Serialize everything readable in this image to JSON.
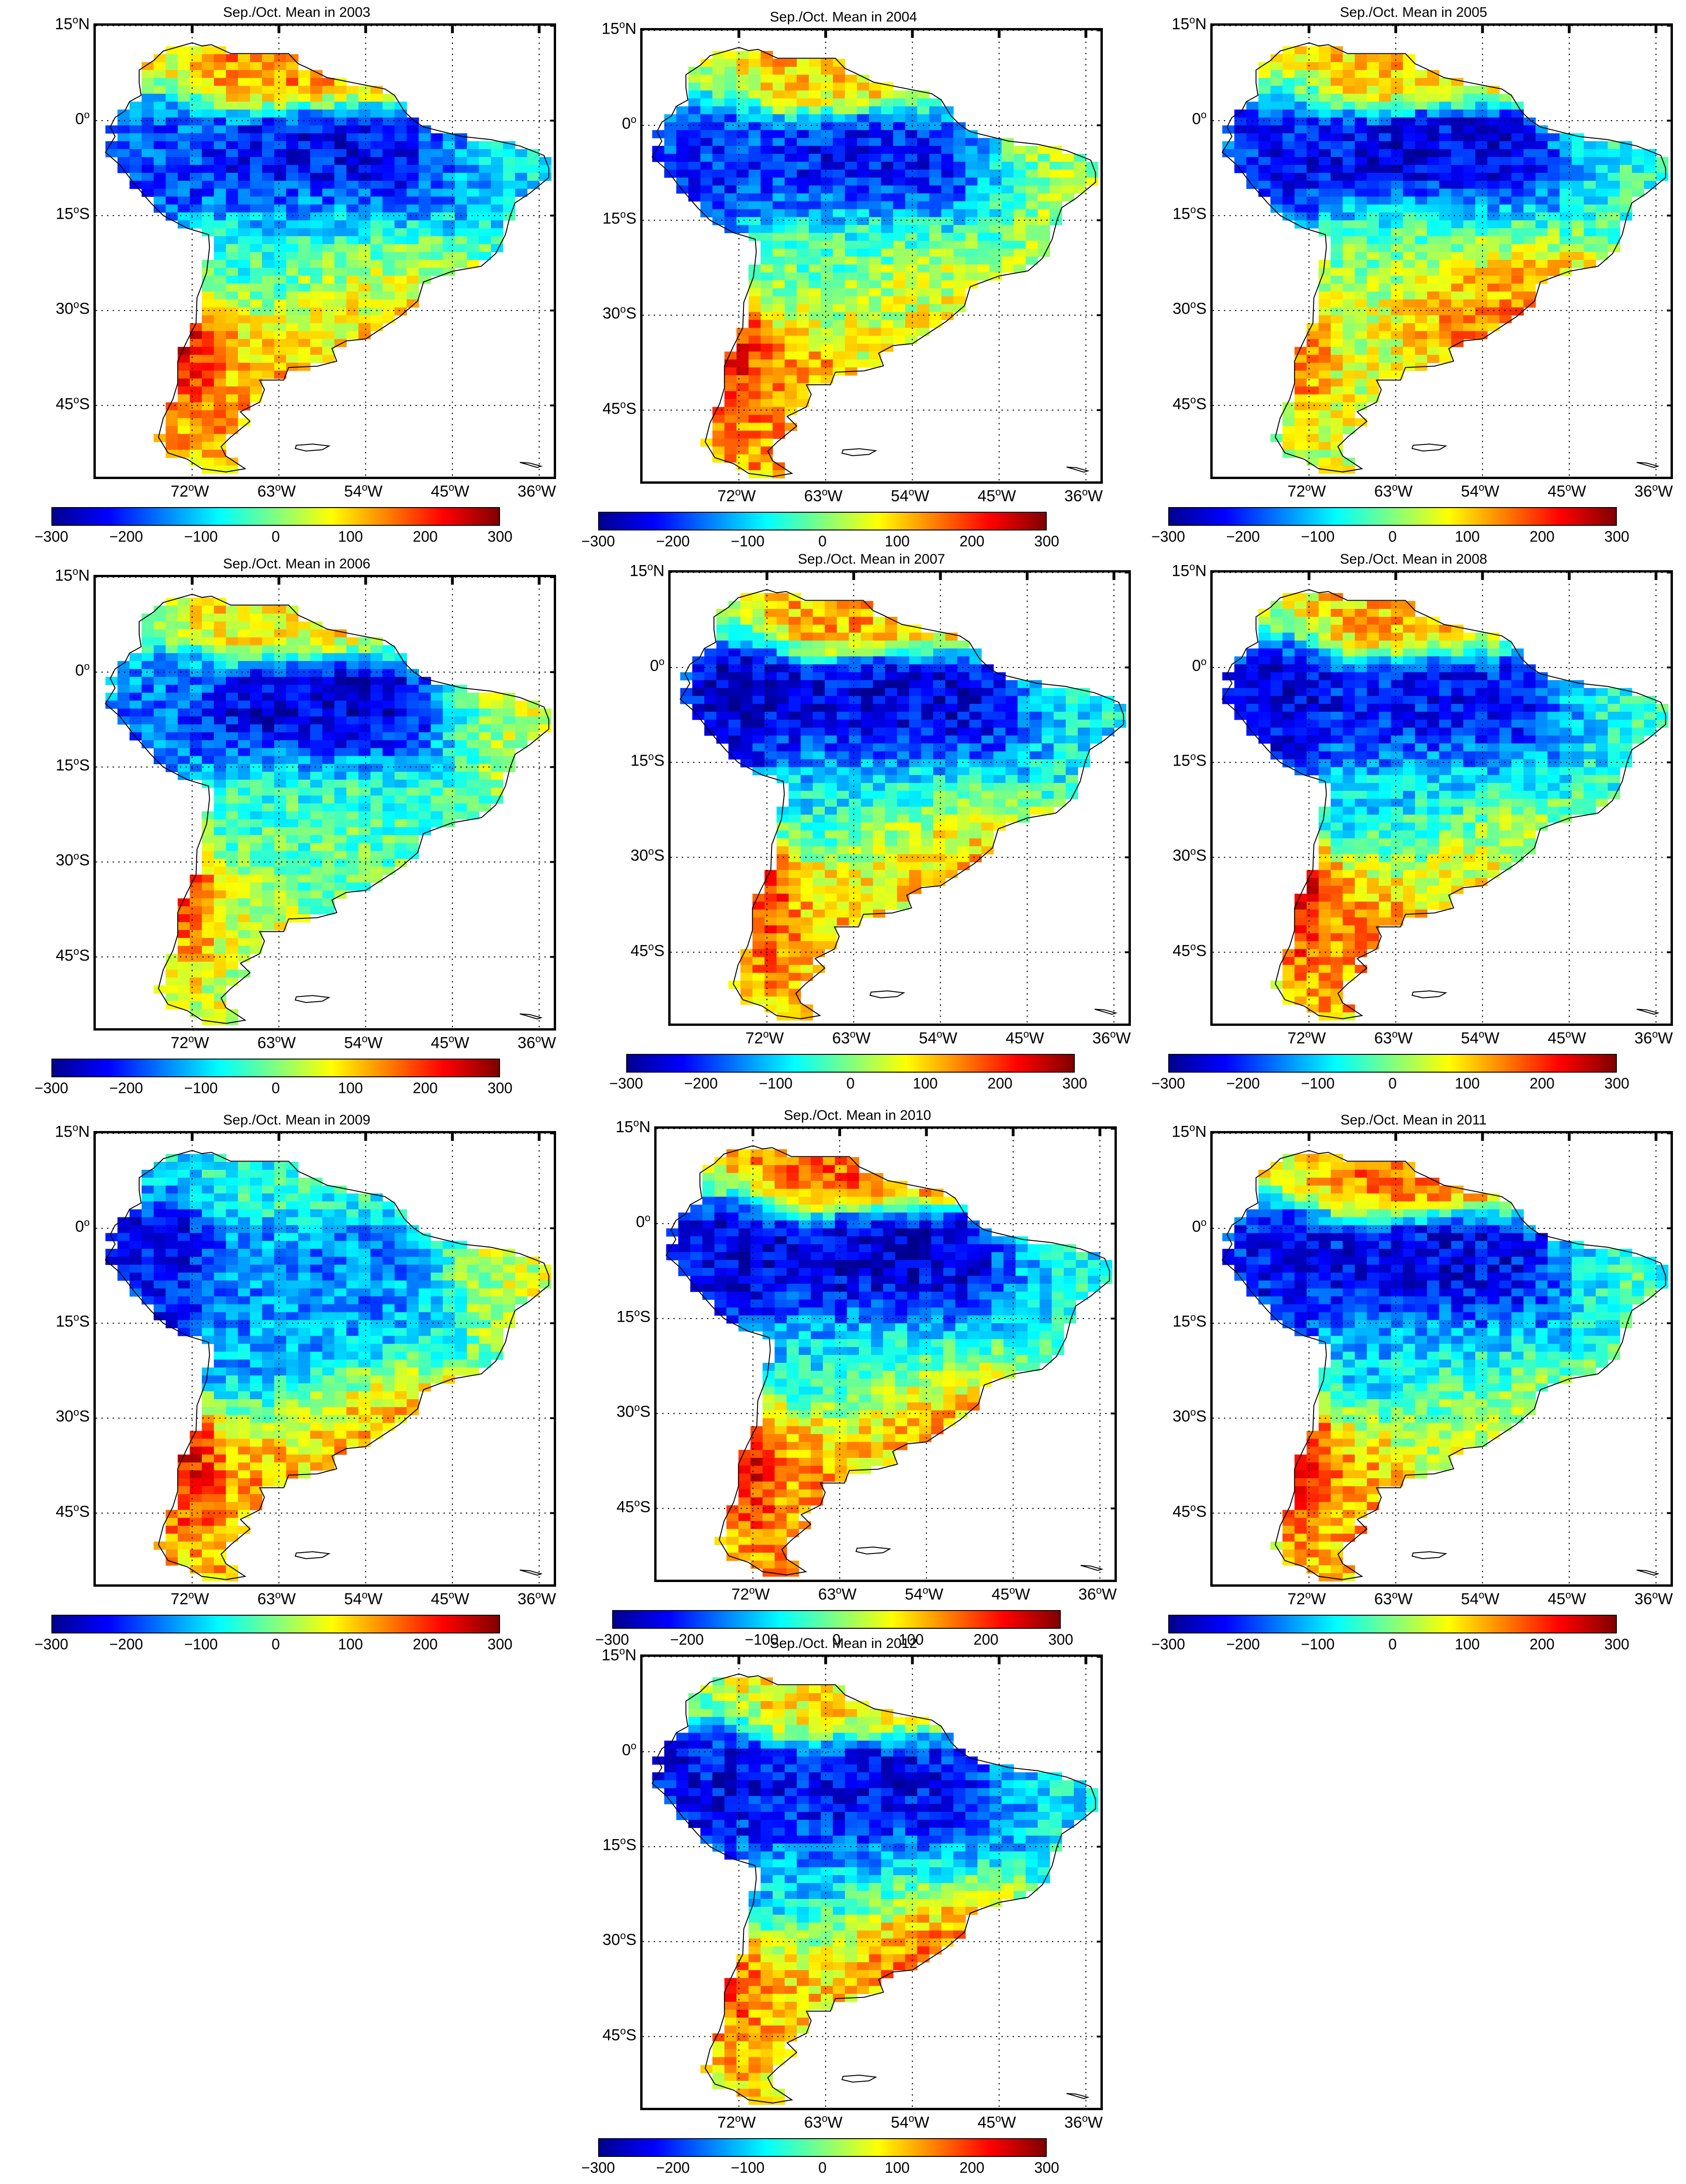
{
  "figure": {
    "colorbar": {
      "min": -300,
      "max": 300,
      "tick_labels": [
        "−300",
        "−200",
        "−100",
        "0",
        "100",
        "200",
        "300"
      ],
      "colormap": [
        "#00008f",
        "#0000ff",
        "#0080ff",
        "#00ffff",
        "#80ff80",
        "#ffff00",
        "#ff8000",
        "#ff0000",
        "#800000"
      ]
    },
    "lat_ticks": [
      {
        "value": 15,
        "deg": "15",
        "hemi": "N"
      },
      {
        "value": 0,
        "deg": "0",
        "hemi": ""
      },
      {
        "value": -15,
        "deg": "15",
        "hemi": "S"
      },
      {
        "value": -30,
        "deg": "30",
        "hemi": "S"
      },
      {
        "value": -45,
        "deg": "45",
        "hemi": "S"
      }
    ],
    "lon_ticks": [
      {
        "value": -72,
        "deg": "72",
        "hemi": "W"
      },
      {
        "value": -63,
        "deg": "63",
        "hemi": "W"
      },
      {
        "value": -54,
        "deg": "54",
        "hemi": "W"
      },
      {
        "value": -45,
        "deg": "45",
        "hemi": "W"
      },
      {
        "value": -36,
        "deg": "36",
        "hemi": "W"
      }
    ],
    "degree_symbol": "o",
    "map_extent": {
      "lon_min": -82,
      "lon_max": -34,
      "lat_min": -57,
      "lat_max": 15
    },
    "palette": {
      "land_outline": "#000000",
      "grid": "#000000"
    }
  },
  "chart_data": [
    {
      "type": "heatmap",
      "title": "Sep./Oct. Mean in 2003",
      "year": 2003,
      "regions": {
        "amazon_central": -250,
        "amazon_west": -180,
        "northern_coast": 150,
        "northeast": -80,
        "southeast": 120,
        "central_brazil": -60,
        "patagonia": 130,
        "andes_south": 260
      }
    },
    {
      "type": "heatmap",
      "title": "Sep./Oct. Mean in 2004",
      "year": 2004,
      "regions": {
        "amazon_central": -240,
        "amazon_west": -200,
        "northern_coast": 110,
        "northeast": 60,
        "southeast": 80,
        "central_brazil": -20,
        "patagonia": 150,
        "andes_south": 230
      }
    },
    {
      "type": "heatmap",
      "title": "Sep./Oct. Mean in 2005",
      "year": 2005,
      "regions": {
        "amazon_central": -270,
        "amazon_west": -220,
        "northern_coast": 120,
        "northeast": -30,
        "southeast": 180,
        "central_brazil": 0,
        "patagonia": 60,
        "andes_south": 200
      }
    },
    {
      "type": "heatmap",
      "title": "Sep./Oct. Mean in 2006",
      "year": 2006,
      "regions": {
        "amazon_central": -280,
        "amazon_west": -150,
        "northern_coast": 100,
        "northeast": 80,
        "southeast": -20,
        "central_brazil": -40,
        "patagonia": 50,
        "andes_south": 220
      }
    },
    {
      "type": "heatmap",
      "title": "Sep./Oct. Mean in 2007",
      "year": 2007,
      "regions": {
        "amazon_central": -270,
        "amazon_west": -260,
        "northern_coast": 130,
        "northeast": -60,
        "southeast": 140,
        "central_brazil": -80,
        "patagonia": 120,
        "andes_south": 240
      }
    },
    {
      "type": "heatmap",
      "title": "Sep./Oct. Mean in 2008",
      "year": 2008,
      "regions": {
        "amazon_central": -240,
        "amazon_west": -260,
        "northern_coast": 120,
        "northeast": -40,
        "southeast": 90,
        "central_brazil": -100,
        "patagonia": 140,
        "andes_south": 250
      }
    },
    {
      "type": "heatmap",
      "title": "Sep./Oct. Mean in 2009",
      "year": 2009,
      "regions": {
        "amazon_central": -150,
        "amazon_west": -250,
        "northern_coast": -60,
        "northeast": 70,
        "southeast": 170,
        "central_brazil": -140,
        "patagonia": 140,
        "andes_south": 260
      }
    },
    {
      "type": "heatmap",
      "title": "Sep./Oct. Mean in 2010",
      "year": 2010,
      "regions": {
        "amazon_central": -280,
        "amazon_west": -250,
        "northern_coast": 180,
        "northeast": -50,
        "southeast": 150,
        "central_brazil": -90,
        "patagonia": 150,
        "andes_south": 260
      }
    },
    {
      "type": "heatmap",
      "title": "Sep./Oct. Mean in 2011",
      "year": 2011,
      "regions": {
        "amazon_central": -260,
        "amazon_west": -230,
        "northern_coast": 160,
        "northeast": -20,
        "southeast": 60,
        "central_brazil": -110,
        "patagonia": 130,
        "andes_south": 250
      }
    },
    {
      "type": "heatmap",
      "title": "Sep./Oct. Mean in 2012",
      "year": 2012,
      "regions": {
        "amazon_central": -250,
        "amazon_west": -240,
        "northern_coast": 90,
        "northeast": -70,
        "southeast": 200,
        "central_brazil": -120,
        "patagonia": 110,
        "andes_south": 200
      }
    }
  ]
}
